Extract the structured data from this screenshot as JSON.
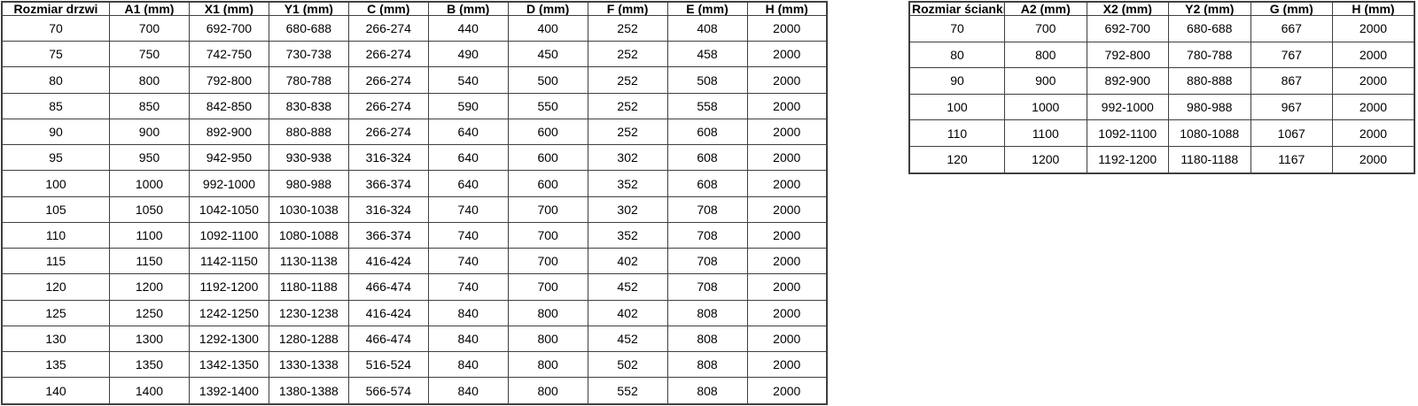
{
  "colors": {
    "background": "#ffffff",
    "border": "#3f3f3f",
    "text": "#000000"
  },
  "tables": [
    {
      "name": "door-size-table",
      "title_column": "Rozmiar drzwi",
      "columns": [
        "Rozmiar drzwi",
        "A1 (mm)",
        "X1 (mm)",
        "Y1 (mm)",
        "C (mm)",
        "B (mm)",
        "D (mm)",
        "F (mm)",
        "E (mm)",
        "H (mm)"
      ],
      "rows": [
        [
          "70",
          "700",
          "692-700",
          "680-688",
          "266-274",
          "440",
          "400",
          "252",
          "408",
          "2000"
        ],
        [
          "75",
          "750",
          "742-750",
          "730-738",
          "266-274",
          "490",
          "450",
          "252",
          "458",
          "2000"
        ],
        [
          "80",
          "800",
          "792-800",
          "780-788",
          "266-274",
          "540",
          "500",
          "252",
          "508",
          "2000"
        ],
        [
          "85",
          "850",
          "842-850",
          "830-838",
          "266-274",
          "590",
          "550",
          "252",
          "558",
          "2000"
        ],
        [
          "90",
          "900",
          "892-900",
          "880-888",
          "266-274",
          "640",
          "600",
          "252",
          "608",
          "2000"
        ],
        [
          "95",
          "950",
          "942-950",
          "930-938",
          "316-324",
          "640",
          "600",
          "302",
          "608",
          "2000"
        ],
        [
          "100",
          "1000",
          "992-1000",
          "980-988",
          "366-374",
          "640",
          "600",
          "352",
          "608",
          "2000"
        ],
        [
          "105",
          "1050",
          "1042-1050",
          "1030-1038",
          "316-324",
          "740",
          "700",
          "302",
          "708",
          "2000"
        ],
        [
          "110",
          "1100",
          "1092-1100",
          "1080-1088",
          "366-374",
          "740",
          "700",
          "352",
          "708",
          "2000"
        ],
        [
          "115",
          "1150",
          "1142-1150",
          "1130-1138",
          "416-424",
          "740",
          "700",
          "402",
          "708",
          "2000"
        ],
        [
          "120",
          "1200",
          "1192-1200",
          "1180-1188",
          "466-474",
          "740",
          "700",
          "452",
          "708",
          "2000"
        ],
        [
          "125",
          "1250",
          "1242-1250",
          "1230-1238",
          "416-424",
          "840",
          "800",
          "402",
          "808",
          "2000"
        ],
        [
          "130",
          "1300",
          "1292-1300",
          "1280-1288",
          "466-474",
          "840",
          "800",
          "452",
          "808",
          "2000"
        ],
        [
          "135",
          "1350",
          "1342-1350",
          "1330-1338",
          "516-524",
          "840",
          "800",
          "502",
          "808",
          "2000"
        ],
        [
          "140",
          "1400",
          "1392-1400",
          "1380-1388",
          "566-574",
          "840",
          "800",
          "552",
          "808",
          "2000"
        ]
      ]
    },
    {
      "name": "wall-size-table",
      "title_column": "Rozmiar ścianki",
      "columns": [
        "Rozmiar ścianki",
        "A2 (mm)",
        "X2 (mm)",
        "Y2 (mm)",
        "G (mm)",
        "H (mm)"
      ],
      "rows": [
        [
          "70",
          "700",
          "692-700",
          "680-688",
          "667",
          "2000"
        ],
        [
          "80",
          "800",
          "792-800",
          "780-788",
          "767",
          "2000"
        ],
        [
          "90",
          "900",
          "892-900",
          "880-888",
          "867",
          "2000"
        ],
        [
          "100",
          "1000",
          "992-1000",
          "980-988",
          "967",
          "2000"
        ],
        [
          "110",
          "1100",
          "1092-1100",
          "1080-1088",
          "1067",
          "2000"
        ],
        [
          "120",
          "1200",
          "1192-1200",
          "1180-1188",
          "1167",
          "2000"
        ]
      ]
    }
  ]
}
